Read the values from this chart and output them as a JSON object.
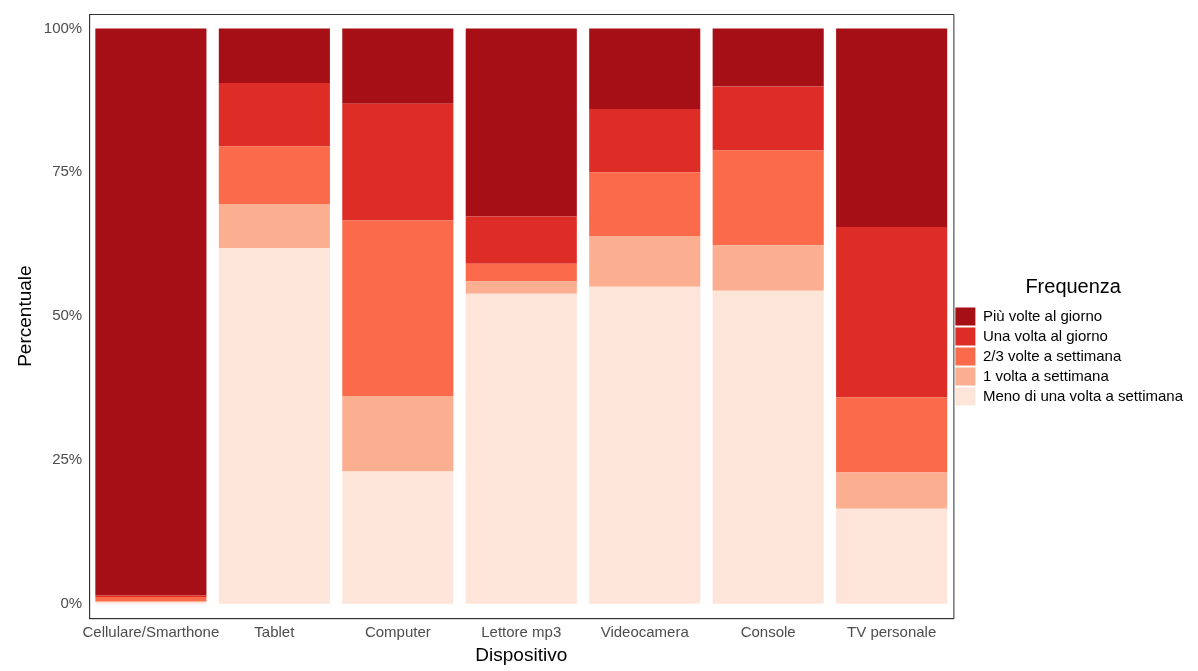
{
  "chart_data": {
    "type": "bar",
    "stacked": true,
    "xlabel": "Dispositivo",
    "ylabel": "Percentuale",
    "legend_title": "Frequenza",
    "legend": "right",
    "grid": false,
    "categories": [
      "Cellulare/Smarthone",
      "Tablet",
      "Computer",
      "Lettore mp3",
      "Videocamera",
      "Console",
      "TV personale"
    ],
    "series": [
      {
        "name": "Meno di una volta a settimana",
        "color": "#fee5d9",
        "values": [
          0.3,
          61.8,
          23.0,
          53.9,
          55.1,
          54.4,
          16.5
        ]
      },
      {
        "name": "1 volta a settimana",
        "color": "#fcae91",
        "values": [
          0.2,
          7.7,
          13.1,
          2.1,
          8.8,
          7.9,
          6.3
        ]
      },
      {
        "name": "2/3 volte a settimana",
        "color": "#fb6a4a",
        "values": [
          0.7,
          10.0,
          30.5,
          3.1,
          11.1,
          16.5,
          13.1
        ]
      },
      {
        "name": "Una volta al giorno",
        "color": "#de2d26",
        "values": [
          0.3,
          11.0,
          20.3,
          8.2,
          11.0,
          11.1,
          29.6
        ]
      },
      {
        "name": "Più volte al giorno",
        "color": "#a50f15",
        "values": [
          98.5,
          9.5,
          13.1,
          32.7,
          14.0,
          10.1,
          34.5
        ]
      }
    ],
    "ylim": [
      -2.5,
      102.5
    ],
    "yticks": [
      {
        "value": 0,
        "label": "0%"
      },
      {
        "value": 25,
        "label": "25%"
      },
      {
        "value": 50,
        "label": "50%"
      },
      {
        "value": 75,
        "label": "75%"
      },
      {
        "value": 100,
        "label": "100%"
      }
    ]
  }
}
